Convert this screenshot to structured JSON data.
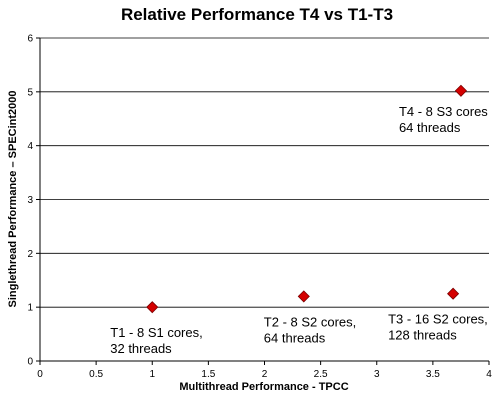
{
  "chart_data": {
    "type": "scatter",
    "title": "Relative Performance T4 vs T1-T3",
    "xlabel": "Multithread Performance - TPCC",
    "ylabel": "Singlethread Performance – SPECint2000",
    "xlim": [
      0,
      4
    ],
    "ylim": [
      0,
      6
    ],
    "x_ticks": [
      "0",
      "0.5",
      "1",
      "1.5",
      "2",
      "2.5",
      "3",
      "3.5",
      "4"
    ],
    "y_ticks": [
      "0",
      "1",
      "2",
      "3",
      "4",
      "5",
      "6"
    ],
    "grid": "horizontal",
    "marker": "diamond",
    "marker_color": "#d40000",
    "points": [
      {
        "x": 1.0,
        "y": 1.0,
        "label_lines": [
          "T1 - 8 S1 cores,",
          "32 threads"
        ],
        "label_anchor": "below-right"
      },
      {
        "x": 2.35,
        "y": 1.2,
        "label_lines": [
          "T2 - 8 S2 cores,",
          "64 threads"
        ],
        "label_anchor": "below-left"
      },
      {
        "x": 3.68,
        "y": 1.25,
        "label_lines": [
          "T3 - 16 S2 cores,",
          "128 threads"
        ],
        "label_anchor": "below-left"
      },
      {
        "x": 3.75,
        "y": 5.02,
        "label_lines": [
          "T4 - 8 S3 cores",
          "64 threads"
        ],
        "label_anchor": "below-left"
      }
    ]
  }
}
